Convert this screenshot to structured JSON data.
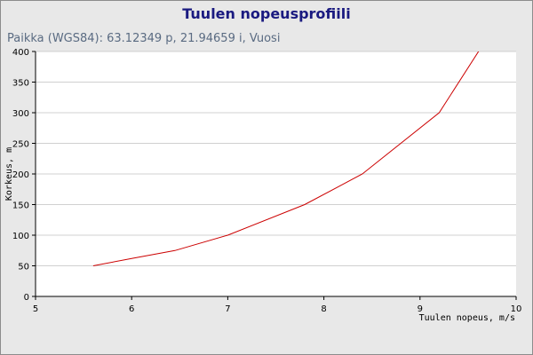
{
  "chart_data": {
    "type": "line",
    "title": "Tuulen nopeusprofiili",
    "subtitle": "Paikka (WGS84): 63.12349 p, 21.94659 i, Vuosi",
    "xlabel": "Tuulen nopeus, m/s",
    "ylabel": "Korkeus, m",
    "xlim": [
      5,
      10
    ],
    "ylim": [
      0,
      400
    ],
    "xticks": [
      "5",
      "6",
      "7",
      "8",
      "9",
      "10"
    ],
    "yticks": [
      "0",
      "50",
      "100",
      "150",
      "200",
      "250",
      "300",
      "350",
      "400"
    ],
    "grid": "horizontal",
    "series": [
      {
        "color": "#cc0000",
        "x": [
          5.6,
          6.0,
          6.45,
          7.0,
          7.8,
          8.4,
          9.2,
          9.65
        ],
        "y": [
          50,
          62,
          75,
          100,
          150,
          200,
          300,
          410
        ]
      }
    ]
  }
}
